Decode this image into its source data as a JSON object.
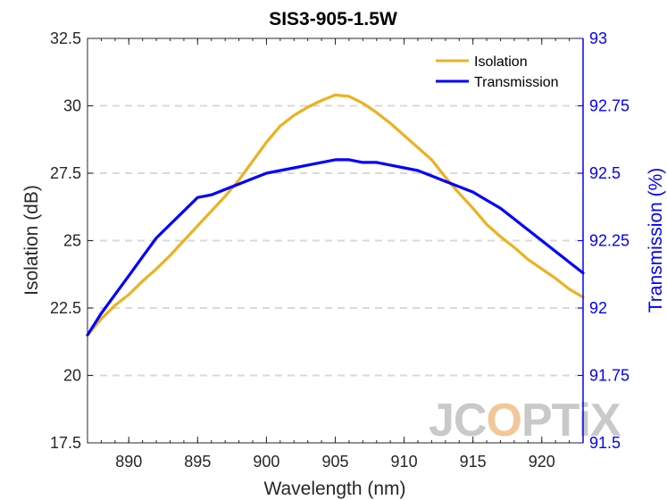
{
  "chart_data": {
    "type": "line",
    "title": "SIS3-905-1.5W",
    "xlabel": "Wavelength (nm)",
    "ylabel_left": "Isolation (dB)",
    "ylabel_right": "Transmission (%)",
    "xlim": [
      887,
      923
    ],
    "ylim_left": [
      17.5,
      32.5
    ],
    "ylim_right": [
      91.5,
      93
    ],
    "x_ticks": [
      "890",
      "895",
      "900",
      "905",
      "910",
      "915",
      "920"
    ],
    "y_left_ticks": [
      "17.5",
      "20",
      "22.5",
      "25",
      "27.5",
      "30",
      "32.5"
    ],
    "y_right_ticks": [
      "91.5",
      "91.75",
      "92",
      "92.25",
      "92.5",
      "92.75",
      "93"
    ],
    "grid": "horizontal dashed",
    "legend_position": "top-right",
    "series": [
      {
        "name": "Isolation",
        "axis": "left",
        "color": "#EDB120",
        "x": [
          887,
          888,
          889,
          890,
          891,
          892,
          893,
          894,
          895,
          896,
          897,
          898,
          899,
          900,
          901,
          902,
          903,
          904,
          905,
          906,
          907,
          908,
          909,
          910,
          911,
          912,
          913,
          914,
          915,
          916,
          917,
          918,
          919,
          920,
          921,
          922,
          923
        ],
        "values": [
          21.5,
          22.1,
          22.6,
          23.0,
          23.5,
          23.95,
          24.45,
          25.0,
          25.55,
          26.1,
          26.65,
          27.25,
          27.95,
          28.65,
          29.25,
          29.65,
          29.95,
          30.2,
          30.4,
          30.35,
          30.1,
          29.75,
          29.35,
          28.9,
          28.45,
          28.0,
          27.35,
          26.75,
          26.2,
          25.6,
          25.15,
          24.75,
          24.3,
          23.95,
          23.6,
          23.2,
          22.9
        ]
      },
      {
        "name": "Transmission",
        "axis": "right",
        "color": "#0000FF",
        "x": [
          887,
          888,
          889,
          890,
          891,
          892,
          893,
          894,
          895,
          896,
          897,
          898,
          899,
          900,
          901,
          902,
          903,
          904,
          905,
          906,
          907,
          908,
          909,
          910,
          911,
          912,
          913,
          914,
          915,
          916,
          917,
          918,
          919,
          920,
          921,
          922,
          923
        ],
        "values": [
          91.9,
          91.98,
          92.05,
          92.12,
          92.19,
          92.26,
          92.31,
          92.36,
          92.41,
          92.42,
          92.44,
          92.46,
          92.48,
          92.5,
          92.51,
          92.52,
          92.53,
          92.54,
          92.55,
          92.55,
          92.54,
          92.54,
          92.53,
          92.52,
          92.51,
          92.49,
          92.47,
          92.45,
          92.43,
          92.4,
          92.37,
          92.33,
          92.29,
          92.25,
          92.21,
          92.17,
          92.13
        ]
      }
    ]
  },
  "watermark": {
    "prefix": "JC",
    "mid": "O",
    "suffix": "PTiX"
  }
}
